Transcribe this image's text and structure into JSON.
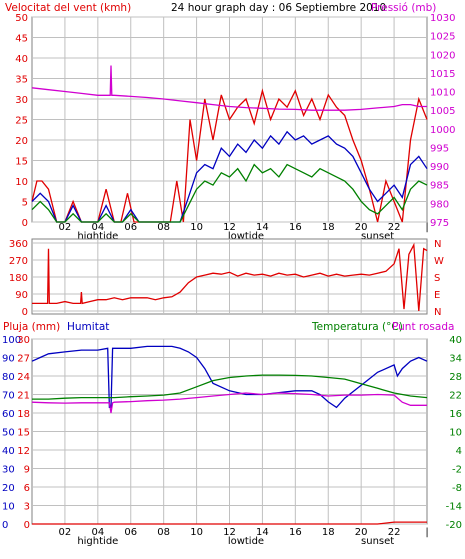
{
  "header": {
    "title": "24 hour graph day : 06 Septiembre 2010",
    "wind_label": "Velocitat del vent (kmh)",
    "pressure_label": "Pressió (mb)",
    "rain_label": "Pluja (mm)",
    "humidity_label": "Humitat",
    "temp_label": "Temperatura (°C)",
    "dew_label": "Punt rosada"
  },
  "colors": {
    "red": "#e00000",
    "blue": "#0000c0",
    "green": "#008000",
    "magenta": "#d000d0",
    "grid": "#c0c0c0"
  },
  "x_axis": {
    "hour_labels": [
      "02",
      "04",
      "06",
      "08",
      "10",
      "12",
      "14",
      "16",
      "18",
      "20",
      "22",
      "|"
    ],
    "markers": [
      "hightide",
      "lowtide",
      "sunset"
    ]
  },
  "chart_data": [
    {
      "type": "line",
      "name": "wind",
      "ylim_left": [
        0,
        50
      ],
      "left_ticks": [
        "0",
        "5",
        "10",
        "15",
        "20",
        "25",
        "30",
        "35",
        "40",
        "45",
        "50"
      ],
      "ylim_right": [
        975,
        1030
      ],
      "right_ticks": [
        "975",
        "980",
        "985",
        "990",
        "995",
        "1000",
        "1005",
        "1010",
        "1015",
        "1020",
        "1025",
        "1030"
      ],
      "series": [
        {
          "color": "red",
          "axis": "left",
          "x": [
            0,
            0.3,
            0.6,
            1,
            1.5,
            2,
            2.5,
            3,
            3.5,
            4,
            4.5,
            5,
            5.4,
            5.8,
            6.2,
            6.6,
            7,
            7.5,
            8,
            8.4,
            8.8,
            9.2,
            9.6,
            10,
            10.5,
            11,
            11.5,
            12,
            12.5,
            13,
            13.5,
            14,
            14.5,
            15,
            15.5,
            16,
            16.5,
            17,
            17.5,
            18,
            18.5,
            19,
            19.5,
            20,
            20.5,
            21,
            21.5,
            22,
            22.5,
            23,
            23.5,
            24
          ],
          "values": [
            5,
            10,
            10,
            8,
            0,
            0,
            5,
            0,
            0,
            0,
            8,
            0,
            0,
            7,
            0,
            0,
            0,
            0,
            0,
            0,
            10,
            0,
            25,
            15,
            30,
            20,
            31,
            25,
            28,
            30,
            24,
            32,
            25,
            30,
            28,
            32,
            26,
            30,
            25,
            31,
            28,
            26,
            20,
            15,
            8,
            0,
            10,
            5,
            0,
            20,
            30,
            25
          ]
        },
        {
          "color": "blue",
          "axis": "left",
          "x": [
            0,
            0.5,
            1,
            1.5,
            2,
            2.5,
            3,
            3.5,
            4,
            4.5,
            5,
            5.5,
            6,
            6.5,
            7,
            7.5,
            8,
            8.5,
            9,
            9.5,
            10,
            10.5,
            11,
            11.5,
            12,
            12.5,
            13,
            13.5,
            14,
            14.5,
            15,
            15.5,
            16,
            16.5,
            17,
            17.5,
            18,
            18.5,
            19,
            19.5,
            20,
            20.5,
            21,
            21.5,
            22,
            22.5,
            23,
            23.5,
            24
          ],
          "values": [
            5,
            7,
            5,
            0,
            0,
            4,
            0,
            0,
            0,
            4,
            0,
            0,
            3,
            0,
            0,
            0,
            0,
            0,
            0,
            6,
            12,
            14,
            13,
            18,
            16,
            19,
            17,
            20,
            18,
            21,
            19,
            22,
            20,
            21,
            19,
            20,
            21,
            19,
            18,
            16,
            12,
            8,
            5,
            7,
            9,
            6,
            14,
            16,
            13
          ]
        },
        {
          "color": "green",
          "axis": "left",
          "x": [
            0,
            0.5,
            1,
            1.5,
            2,
            2.5,
            3,
            3.5,
            4,
            4.5,
            5,
            5.5,
            6,
            6.5,
            7,
            7.5,
            8,
            8.5,
            9,
            9.5,
            10,
            10.5,
            11,
            11.5,
            12,
            12.5,
            13,
            13.5,
            14,
            14.5,
            15,
            15.5,
            16,
            16.5,
            17,
            17.5,
            18,
            18.5,
            19,
            19.5,
            20,
            20.5,
            21,
            21.5,
            22,
            22.5,
            23,
            23.5,
            24
          ],
          "values": [
            3,
            5,
            3,
            0,
            0,
            2,
            0,
            0,
            0,
            2,
            0,
            0,
            2,
            0,
            0,
            0,
            0,
            0,
            0,
            4,
            8,
            10,
            9,
            12,
            11,
            13,
            10,
            14,
            12,
            13,
            11,
            14,
            13,
            12,
            11,
            13,
            12,
            11,
            10,
            8,
            5,
            3,
            2,
            4,
            6,
            3,
            8,
            10,
            9
          ]
        },
        {
          "color": "magenta",
          "axis": "right",
          "x": [
            0,
            1,
            2,
            3,
            4,
            4.75,
            4.8,
            4.85,
            5,
            6,
            7,
            8,
            9,
            10,
            11,
            12,
            13,
            14,
            15,
            16,
            17,
            18,
            19,
            20,
            21,
            22,
            22.5,
            23,
            23.5,
            24
          ],
          "values": [
            1011,
            1010.5,
            1010,
            1009.5,
            1009,
            1009,
            1017,
            1009,
            1009,
            1008.7,
            1008.4,
            1008,
            1007.5,
            1007,
            1006.5,
            1006,
            1005.7,
            1005.5,
            1005.3,
            1005.2,
            1005,
            1005,
            1005,
            1005.2,
            1005.6,
            1006,
            1006.5,
            1006.5,
            1006,
            1006
          ]
        }
      ]
    },
    {
      "type": "line",
      "name": "wind direction",
      "ylim": [
        0,
        360
      ],
      "left_ticks": [
        "0",
        "90",
        "180",
        "270",
        "360"
      ],
      "right_labels": [
        "N",
        "W",
        "S",
        "E",
        "N"
      ],
      "series": [
        {
          "color": "red",
          "axis": "left",
          "x": [
            0,
            0.5,
            0.95,
            1,
            1.05,
            1.5,
            2,
            2.5,
            2.95,
            3,
            3.05,
            3.5,
            4,
            4.5,
            5,
            5.5,
            6,
            6.5,
            7,
            7.5,
            8,
            8.5,
            9,
            9.5,
            10,
            10.5,
            11,
            11.5,
            12,
            12.5,
            13,
            13.5,
            14,
            14.5,
            15,
            15.5,
            16,
            16.5,
            17,
            17.5,
            18,
            18.5,
            19,
            19.5,
            20,
            20.5,
            21,
            21.5,
            22,
            22.3,
            22.6,
            22.9,
            23.2,
            23.5,
            23.8,
            24
          ],
          "values": [
            40,
            40,
            40,
            330,
            40,
            40,
            50,
            40,
            40,
            100,
            40,
            50,
            60,
            60,
            70,
            60,
            70,
            70,
            70,
            60,
            70,
            75,
            100,
            150,
            180,
            190,
            200,
            195,
            205,
            185,
            200,
            190,
            195,
            185,
            200,
            190,
            195,
            180,
            190,
            200,
            185,
            195,
            185,
            190,
            195,
            190,
            200,
            210,
            250,
            330,
            10,
            300,
            350,
            0,
            330,
            320
          ]
        }
      ]
    },
    {
      "type": "line",
      "name": "rain humidity temperature",
      "ylim_rain": [
        0,
        30
      ],
      "rain_ticks": [
        "0",
        "3",
        "6",
        "9",
        "12",
        "15",
        "18",
        "21",
        "24",
        "27",
        "30"
      ],
      "ylim_humidity": [
        0,
        100
      ],
      "humidity_ticks": [
        "0",
        "10",
        "20",
        "30",
        "40",
        "50",
        "60",
        "70",
        "80",
        "90",
        "100"
      ],
      "ylim_temp": [
        -20,
        40
      ],
      "temp_ticks": [
        "-20",
        "-14",
        "-8",
        "-2",
        "4",
        "10",
        "16",
        "22",
        "28",
        "34",
        "40"
      ],
      "series": [
        {
          "color": "blue",
          "axis": "humidity",
          "x": [
            0,
            0.5,
            1,
            2,
            3,
            4,
            4.6,
            4.7,
            4.8,
            4.9,
            5,
            6,
            7,
            8,
            8.5,
            9,
            9.5,
            10,
            10.5,
            11,
            12,
            13,
            14,
            15,
            16,
            17,
            17.5,
            18,
            18.5,
            19,
            20,
            21,
            22,
            22.2,
            22.5,
            23,
            23.5,
            24
          ],
          "values": [
            88,
            90,
            92,
            93,
            94,
            94,
            95,
            63,
            63,
            95,
            95,
            95,
            96,
            96,
            96,
            95,
            93,
            90,
            84,
            76,
            72,
            70,
            70,
            71,
            72,
            72,
            70,
            66,
            63,
            68,
            75,
            82,
            86,
            80,
            84,
            88,
            90,
            88
          ]
        },
        {
          "color": "green",
          "axis": "temp",
          "x": [
            0,
            1,
            2,
            3,
            4,
            5,
            6,
            7,
            8,
            9,
            10,
            11,
            12,
            13,
            14,
            15,
            16,
            17,
            18,
            19,
            20,
            21,
            22,
            23,
            24
          ],
          "values": [
            20.5,
            20.5,
            20.8,
            21,
            21,
            21,
            21.3,
            21.5,
            21.8,
            22.5,
            24.5,
            26.5,
            27.5,
            28,
            28.3,
            28.3,
            28.2,
            28,
            27.5,
            27,
            25.5,
            24,
            22.5,
            21.5,
            21
          ]
        },
        {
          "color": "magenta",
          "axis": "temp",
          "x": [
            0,
            1,
            2,
            3,
            4,
            4.7,
            4.8,
            4.9,
            5,
            6,
            7,
            8,
            9,
            10,
            11,
            12,
            13,
            14,
            15,
            16,
            17,
            18,
            19,
            20,
            21,
            22,
            22.5,
            23,
            24
          ],
          "values": [
            19.5,
            19.3,
            19.2,
            19.3,
            19.3,
            19.3,
            16,
            19.3,
            19.5,
            19.7,
            20,
            20.2,
            20.5,
            21,
            21.5,
            22,
            22.5,
            22,
            22.5,
            22.3,
            22,
            21.5,
            21.8,
            21.8,
            22,
            21.8,
            19.5,
            18.5,
            18.5
          ]
        },
        {
          "color": "red",
          "axis": "rain",
          "x": [
            0,
            21,
            22,
            24
          ],
          "values": [
            0,
            0,
            0.3,
            0.3
          ]
        }
      ]
    }
  ]
}
